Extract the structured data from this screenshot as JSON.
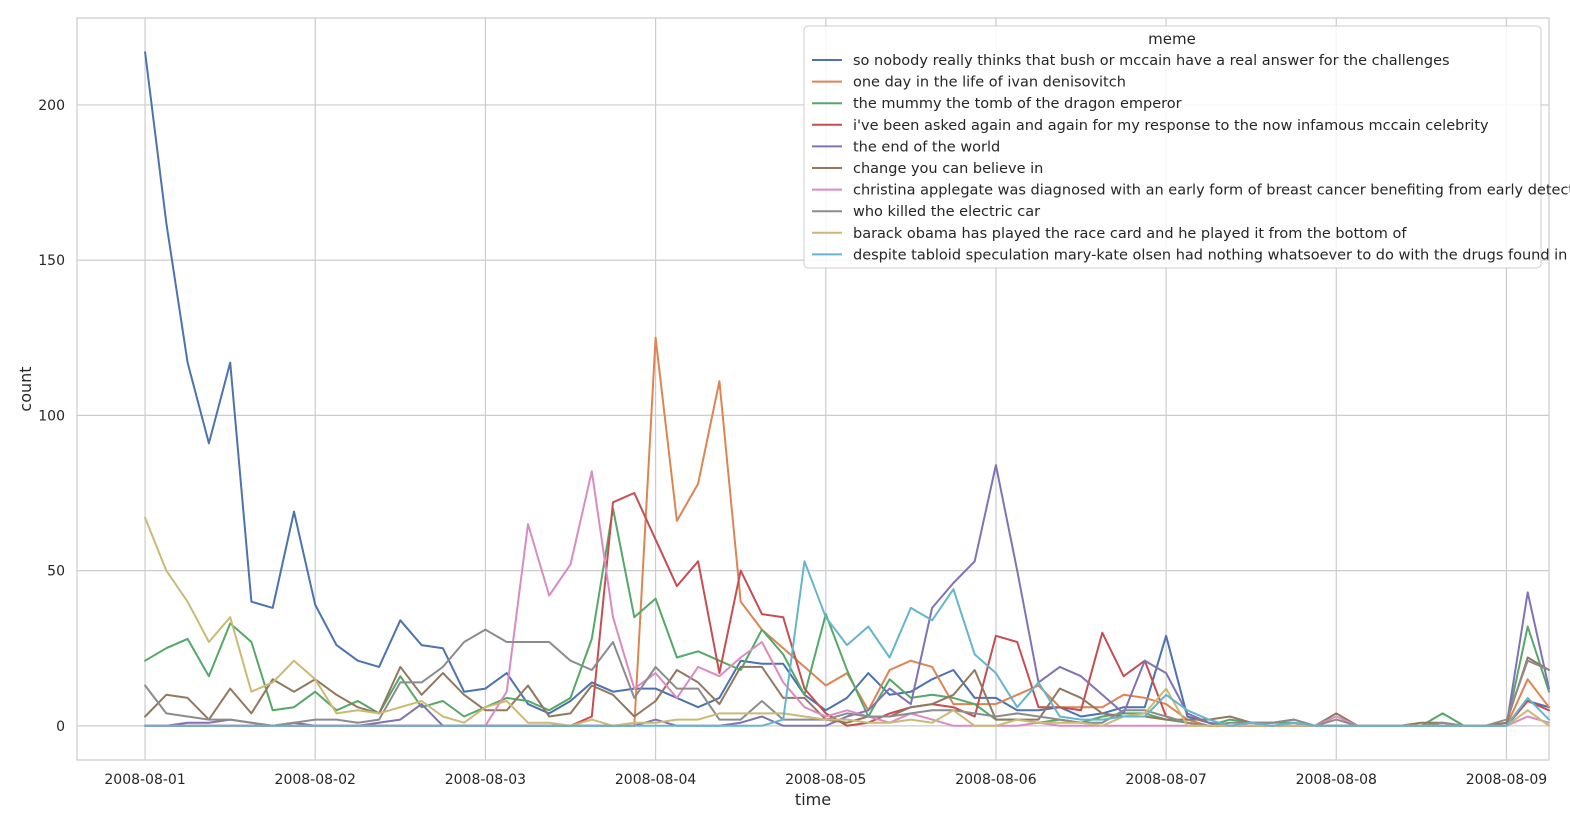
{
  "chart_data": {
    "type": "line",
    "title": "",
    "xlabel": "time",
    "ylabel": "count",
    "x_start": "2008-08-01",
    "x_step_hours": 3,
    "xlim_days": [
      -0.4,
      8.25
    ],
    "ylim": [
      -11,
      228
    ],
    "x_ticks": [
      "2008-08-01",
      "2008-08-02",
      "2008-08-03",
      "2008-08-04",
      "2008-08-05",
      "2008-08-06",
      "2008-08-07",
      "2008-08-08",
      "2008-08-09"
    ],
    "y_ticks": [
      0,
      50,
      100,
      150,
      200
    ],
    "grid": true,
    "legend": {
      "title": "meme",
      "placement": "top-right"
    },
    "series": [
      {
        "name": "so nobody really thinks that bush or mccain have a real answer for the challenges",
        "color": "#4c72b0",
        "values": [
          217,
          162,
          117,
          91,
          117,
          40,
          38,
          69,
          39,
          26,
          21,
          19,
          34,
          26,
          25,
          11,
          12,
          17,
          7,
          4,
          8,
          14,
          11,
          12,
          12,
          9,
          6,
          9,
          21,
          20,
          20,
          10,
          5,
          9,
          17,
          10,
          11,
          15,
          18,
          9,
          9,
          5,
          5,
          6,
          3,
          4,
          6,
          6,
          29,
          3,
          1,
          0,
          0,
          0,
          0,
          0,
          0,
          0,
          0,
          0,
          0,
          0,
          0,
          0,
          0,
          8,
          6
        ]
      },
      {
        "name": "one day in the life of ivan denisovitch",
        "color": "#dd8452",
        "values": [
          0,
          0,
          0,
          0,
          0,
          0,
          0,
          0,
          0,
          0,
          0,
          0,
          0,
          0,
          0,
          0,
          0,
          0,
          0,
          0,
          0,
          0,
          0,
          0,
          125,
          66,
          78,
          111,
          40,
          31,
          25,
          19,
          13,
          17,
          5,
          18,
          21,
          19,
          7,
          7,
          7,
          10,
          13,
          6,
          6,
          6,
          10,
          9,
          7,
          2,
          0,
          0,
          0,
          0,
          0,
          0,
          0,
          0,
          0,
          0,
          0,
          0,
          0,
          0,
          0,
          15,
          6
        ]
      },
      {
        "name": "the mummy the tomb of the dragon emperor",
        "color": "#55a868",
        "values": [
          21,
          25,
          28,
          16,
          33,
          27,
          5,
          6,
          11,
          5,
          8,
          4,
          16,
          6,
          8,
          3,
          6,
          9,
          8,
          5,
          9,
          28,
          70,
          35,
          41,
          22,
          24,
          21,
          18,
          31,
          23,
          10,
          36,
          18,
          3,
          15,
          9,
          10,
          9,
          7,
          2,
          2,
          1,
          2,
          1,
          3,
          4,
          4,
          2,
          1,
          0,
          2,
          1,
          1,
          1,
          0,
          0,
          0,
          0,
          0,
          0,
          4,
          0,
          0,
          0,
          32,
          11
        ]
      },
      {
        "name": "i've been asked again and again for my response to the now infamous mccain celebrity",
        "color": "#c44e52",
        "values": [
          0,
          0,
          0,
          0,
          0,
          0,
          0,
          0,
          0,
          0,
          0,
          0,
          0,
          0,
          0,
          0,
          0,
          0,
          0,
          0,
          0,
          3,
          72,
          75,
          60,
          45,
          53,
          17,
          50,
          36,
          35,
          12,
          4,
          0,
          1,
          4,
          6,
          7,
          6,
          3,
          29,
          27,
          6,
          6,
          5,
          30,
          16,
          21,
          3,
          1,
          0,
          0,
          0,
          0,
          0,
          0,
          0,
          0,
          0,
          0,
          0,
          0,
          0,
          0,
          0,
          8,
          5
        ]
      },
      {
        "name": "the end of the world",
        "color": "#8172b3",
        "values": [
          0,
          0,
          1,
          1,
          2,
          1,
          0,
          1,
          0,
          0,
          0,
          1,
          2,
          7,
          0,
          0,
          0,
          0,
          0,
          0,
          0,
          0,
          0,
          0,
          2,
          0,
          0,
          0,
          1,
          3,
          0,
          0,
          0,
          3,
          5,
          12,
          7,
          38,
          46,
          53,
          84,
          50,
          14,
          19,
          16,
          10,
          4,
          21,
          17,
          4,
          1,
          0,
          0,
          0,
          0,
          0,
          0,
          0,
          0,
          0,
          0,
          0,
          0,
          0,
          0,
          43,
          12
        ]
      },
      {
        "name": "change you can believe in",
        "color": "#937860",
        "values": [
          3,
          10,
          9,
          2,
          12,
          4,
          15,
          11,
          15,
          10,
          6,
          4,
          19,
          10,
          17,
          10,
          5,
          5,
          13,
          3,
          4,
          13,
          10,
          3,
          8,
          18,
          14,
          7,
          19,
          19,
          9,
          9,
          2,
          1,
          3,
          3,
          6,
          7,
          10,
          18,
          2,
          2,
          2,
          12,
          9,
          4,
          3,
          3,
          2,
          2,
          2,
          3,
          1,
          1,
          2,
          0,
          4,
          0,
          0,
          0,
          1,
          1,
          0,
          0,
          1,
          22,
          18
        ]
      },
      {
        "name": "christina applegate was diagnosed with an early form of breast cancer benefiting from early detection",
        "color": "#da8bc3",
        "values": [
          0,
          0,
          0,
          0,
          0,
          0,
          0,
          0,
          0,
          0,
          0,
          0,
          0,
          0,
          0,
          0,
          0,
          11,
          65,
          42,
          52,
          82,
          35,
          12,
          17,
          9,
          19,
          16,
          22,
          27,
          14,
          6,
          3,
          5,
          3,
          1,
          4,
          2,
          0,
          0,
          0,
          0,
          1,
          0,
          0,
          0,
          0,
          0,
          0,
          0,
          0,
          0,
          0,
          0,
          0,
          0,
          3,
          0,
          0,
          0,
          0,
          0,
          0,
          0,
          0,
          3,
          1
        ]
      },
      {
        "name": "who killed the electric car",
        "color": "#8c8c8c",
        "values": [
          13,
          4,
          3,
          2,
          2,
          1,
          0,
          1,
          2,
          2,
          1,
          2,
          14,
          14,
          19,
          27,
          31,
          27,
          27,
          27,
          21,
          18,
          27,
          9,
          19,
          12,
          12,
          2,
          2,
          8,
          2,
          2,
          2,
          4,
          3,
          3,
          4,
          5,
          5,
          4,
          3,
          4,
          3,
          2,
          1,
          1,
          5,
          5,
          3,
          1,
          0,
          1,
          1,
          1,
          2,
          0,
          2,
          0,
          0,
          0,
          0,
          1,
          0,
          0,
          2,
          21,
          18
        ]
      },
      {
        "name": "barack obama has played the race card and he played it from the bottom of",
        "color": "#ccb974",
        "values": [
          67,
          50,
          40,
          27,
          35,
          11,
          14,
          21,
          15,
          4,
          5,
          4,
          6,
          8,
          3,
          1,
          6,
          8,
          1,
          1,
          0,
          2,
          0,
          1,
          1,
          2,
          2,
          4,
          4,
          4,
          4,
          3,
          2,
          2,
          1,
          1,
          2,
          1,
          5,
          0,
          0,
          2,
          1,
          1,
          1,
          0,
          3,
          4,
          12,
          0,
          0,
          0,
          0,
          0,
          0,
          0,
          0,
          0,
          0,
          0,
          0,
          0,
          0,
          0,
          0,
          5,
          0
        ]
      },
      {
        "name": "despite tabloid speculation mary-kate olsen had nothing whatsoever to do with the drugs found in",
        "color": "#64b5cd",
        "values": [
          0,
          0,
          0,
          0,
          0,
          0,
          0,
          0,
          0,
          0,
          0,
          0,
          0,
          0,
          0,
          0,
          0,
          0,
          0,
          0,
          0,
          0,
          0,
          0,
          0,
          0,
          0,
          0,
          0,
          0,
          2,
          53,
          35,
          26,
          32,
          22,
          38,
          34,
          44,
          23,
          17,
          6,
          14,
          3,
          2,
          2,
          3,
          3,
          10,
          5,
          2,
          0,
          1,
          0,
          1,
          0,
          0,
          0,
          0,
          0,
          0,
          0,
          0,
          0,
          0,
          9,
          2
        ]
      }
    ]
  }
}
